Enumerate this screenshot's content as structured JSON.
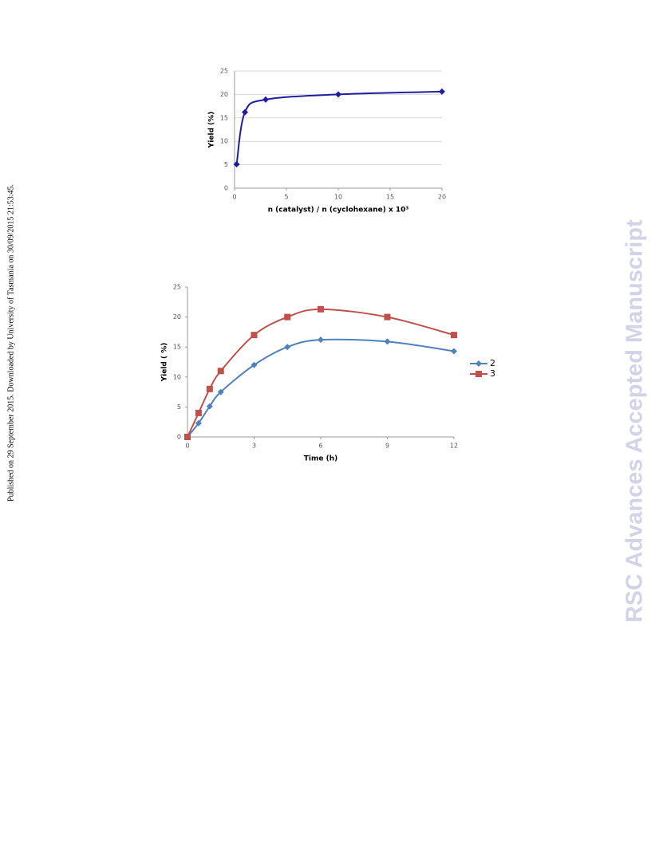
{
  "margin_note": "Published on 29 September 2015. Downloaded by University of Tasmania on 30/09/2015 21:53:45.",
  "watermark": "RSC Advances Accepted Manuscript",
  "chart_data": [
    {
      "type": "line",
      "xlabel": "n (catalyst) / n (cyclohexane) x 10³",
      "ylabel": "Yield (%)",
      "x": [
        0.2,
        1,
        3,
        10,
        20
      ],
      "series": [
        {
          "color": "#1f1f9e",
          "marker": "diamond",
          "values": [
            5.1,
            16.2,
            18.9,
            20.0,
            20.6
          ]
        }
      ],
      "xlim": [
        0,
        20
      ],
      "xticks": [
        0,
        5,
        10,
        15,
        20
      ],
      "ylim": [
        0,
        25
      ],
      "yticks": [
        0,
        5,
        10,
        15,
        20,
        25
      ],
      "grid": true
    },
    {
      "type": "line",
      "xlabel": "Time (h)",
      "ylabel": "Yield ( %)",
      "x": [
        0,
        0.5,
        1,
        1.5,
        3,
        4.5,
        6,
        9,
        12
      ],
      "series": [
        {
          "name": "2",
          "color": "#4f81bd",
          "marker": "diamond",
          "values": [
            0,
            2.3,
            5.1,
            7.5,
            12,
            15,
            16.2,
            15.9,
            14.3
          ]
        },
        {
          "name": "3",
          "color": "#c0504d",
          "marker": "square",
          "values": [
            0,
            4,
            8,
            11,
            17,
            20,
            21.3,
            20,
            17
          ]
        }
      ],
      "xlim": [
        0,
        12
      ],
      "xticks": [
        0,
        3,
        6,
        9,
        12
      ],
      "ylim": [
        0,
        25
      ],
      "yticks": [
        0,
        5,
        10,
        15,
        20,
        25
      ],
      "grid": false,
      "legend": "right"
    }
  ]
}
